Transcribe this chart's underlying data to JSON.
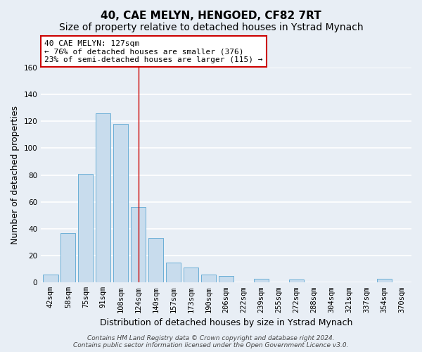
{
  "title": "40, CAE MELYN, HENGOED, CF82 7RT",
  "subtitle": "Size of property relative to detached houses in Ystrad Mynach",
  "xlabel": "Distribution of detached houses by size in Ystrad Mynach",
  "ylabel": "Number of detached properties",
  "categories": [
    "42sqm",
    "58sqm",
    "75sqm",
    "91sqm",
    "108sqm",
    "124sqm",
    "140sqm",
    "157sqm",
    "173sqm",
    "190sqm",
    "206sqm",
    "222sqm",
    "239sqm",
    "255sqm",
    "272sqm",
    "288sqm",
    "304sqm",
    "321sqm",
    "337sqm",
    "354sqm",
    "370sqm"
  ],
  "values": [
    6,
    37,
    81,
    126,
    118,
    56,
    33,
    15,
    11,
    6,
    5,
    0,
    3,
    0,
    2,
    0,
    0,
    0,
    0,
    3,
    0
  ],
  "bar_color": "#c8dced",
  "bar_edgecolor": "#6aaed6",
  "vline_x_index": 5,
  "annotation_title": "40 CAE MELYN: 127sqm",
  "annotation_line1": "← 76% of detached houses are smaller (376)",
  "annotation_line2": "23% of semi-detached houses are larger (115) →",
  "annotation_box_color": "#ffffff",
  "annotation_box_edgecolor": "#cc0000",
  "vline_color": "#cc0000",
  "ylim": [
    0,
    160
  ],
  "yticks": [
    0,
    20,
    40,
    60,
    80,
    100,
    120,
    140,
    160
  ],
  "background_color": "#e8eef5",
  "grid_color": "#ffffff",
  "title_fontsize": 11,
  "axis_label_fontsize": 9,
  "tick_fontsize": 7.5,
  "footer_fontsize": 6.5,
  "footer_line1": "Contains HM Land Registry data © Crown copyright and database right 2024.",
  "footer_line2": "Contains public sector information licensed under the Open Government Licence v3.0."
}
